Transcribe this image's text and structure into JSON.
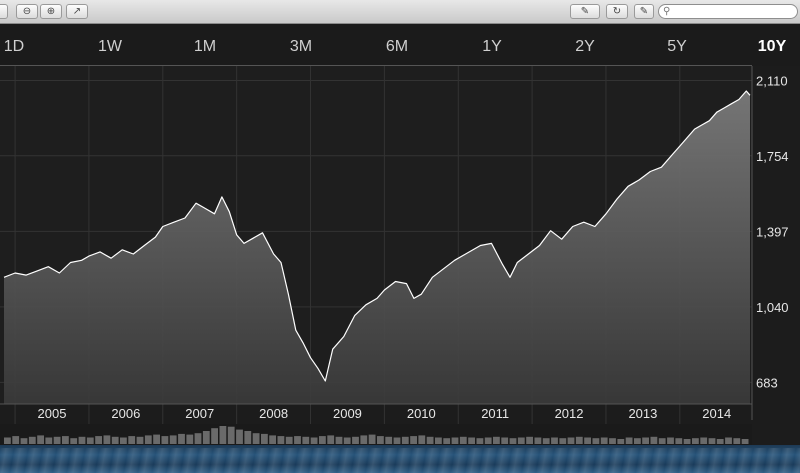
{
  "window": {
    "title": "",
    "search_placeholder": ""
  },
  "ranges": [
    {
      "label": "1D",
      "active": false
    },
    {
      "label": "1W",
      "active": false
    },
    {
      "label": "1M",
      "active": false
    },
    {
      "label": "3M",
      "active": false
    },
    {
      "label": "6M",
      "active": false
    },
    {
      "label": "1Y",
      "active": false
    },
    {
      "label": "2Y",
      "active": false
    },
    {
      "label": "5Y",
      "active": false
    },
    {
      "label": "10Y",
      "active": true
    }
  ],
  "chart_data": {
    "type": "area",
    "title": "",
    "xlabel": "",
    "ylabel": "",
    "x_ticks": [
      "2005",
      "2006",
      "2007",
      "2008",
      "2009",
      "2010",
      "2011",
      "2012",
      "2013",
      "2014"
    ],
    "y_ticks": [
      "2,110",
      "1,754",
      "1,397",
      "1,040",
      "683"
    ],
    "ylim": [
      600,
      2150
    ],
    "xlim": [
      2004.85,
      2014.95
    ],
    "grid": true,
    "line_color": "#ffffff",
    "series": [
      {
        "x": [
          2004.85,
          2005.0,
          2005.15,
          2005.3,
          2005.45,
          2005.6,
          2005.75,
          2005.9,
          2006.0,
          2006.15,
          2006.3,
          2006.45,
          2006.6,
          2006.75,
          2006.9,
          2007.0,
          2007.15,
          2007.3,
          2007.45,
          2007.55,
          2007.7,
          2007.8,
          2007.9,
          2008.0,
          2008.1,
          2008.2,
          2008.35,
          2008.5,
          2008.6,
          2008.7,
          2008.8,
          2008.9,
          2009.0,
          2009.1,
          2009.2,
          2009.3,
          2009.45,
          2009.6,
          2009.75,
          2009.9,
          2010.0,
          2010.15,
          2010.3,
          2010.4,
          2010.5,
          2010.65,
          2010.8,
          2010.95,
          2011.1,
          2011.3,
          2011.45,
          2011.6,
          2011.7,
          2011.8,
          2011.95,
          2012.1,
          2012.25,
          2012.4,
          2012.55,
          2012.7,
          2012.85,
          2013.0,
          2013.15,
          2013.3,
          2013.45,
          2013.6,
          2013.75,
          2013.9,
          2014.0,
          2014.1,
          2014.2,
          2014.3,
          2014.4,
          2014.5,
          2014.6,
          2014.7,
          2014.8,
          2014.9,
          2014.95
        ],
        "values": [
          1180,
          1200,
          1190,
          1210,
          1230,
          1200,
          1250,
          1260,
          1280,
          1300,
          1270,
          1310,
          1290,
          1330,
          1370,
          1420,
          1440,
          1460,
          1530,
          1510,
          1480,
          1560,
          1490,
          1380,
          1340,
          1360,
          1390,
          1290,
          1250,
          1100,
          930,
          870,
          800,
          750,
          690,
          840,
          900,
          1000,
          1050,
          1080,
          1120,
          1160,
          1150,
          1080,
          1100,
          1180,
          1220,
          1260,
          1290,
          1330,
          1340,
          1240,
          1180,
          1250,
          1290,
          1330,
          1400,
          1360,
          1420,
          1440,
          1420,
          1480,
          1550,
          1610,
          1640,
          1680,
          1700,
          1760,
          1800,
          1840,
          1880,
          1900,
          1920,
          1960,
          1980,
          2000,
          2020,
          2060,
          2040
        ]
      }
    ],
    "volume": [
      9,
      11,
      8,
      10,
      12,
      9,
      10,
      11,
      8,
      10,
      9,
      11,
      12,
      10,
      9,
      11,
      10,
      12,
      13,
      11,
      12,
      14,
      13,
      15,
      18,
      22,
      25,
      24,
      20,
      18,
      15,
      14,
      12,
      11,
      10,
      11,
      10,
      9,
      11,
      12,
      10,
      9,
      10,
      12,
      13,
      11,
      10,
      9,
      10,
      11,
      12,
      10,
      9,
      8,
      9,
      10,
      9,
      8,
      9,
      10,
      9,
      8,
      9,
      10,
      9,
      8,
      9,
      8,
      9,
      10,
      9,
      8,
      9,
      8,
      7,
      9,
      8,
      9,
      10,
      8,
      9,
      8,
      7,
      8,
      9,
      8,
      7,
      9,
      8,
      7
    ]
  }
}
